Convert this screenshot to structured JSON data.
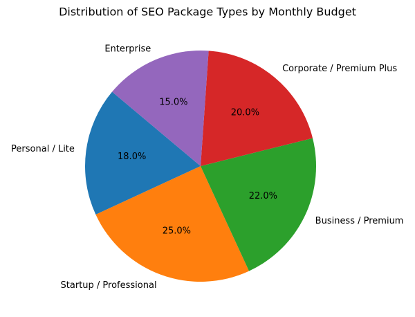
{
  "chart_data": {
    "type": "pie",
    "title": "Distribution of SEO Package Types by Monthly Budget",
    "categories": [
      "Personal / Lite",
      "Startup / Professional",
      "Business / Premium",
      "Corporate / Premium Plus",
      "Enterprise"
    ],
    "values": [
      18,
      25,
      22,
      20,
      15
    ],
    "value_labels": [
      "18.0%",
      "25.0%",
      "22.0%",
      "20.0%",
      "15.0%"
    ],
    "colors": [
      "#1f77b4",
      "#ff7f0e",
      "#2ca02c",
      "#d62728",
      "#9467bd"
    ],
    "start_angle": 140
  }
}
